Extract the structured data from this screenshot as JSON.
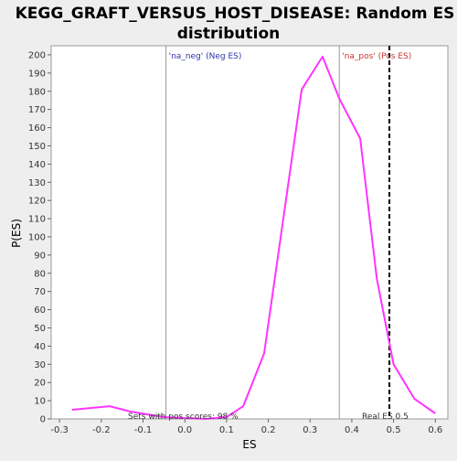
{
  "chart_data": {
    "type": "line",
    "title_line1": "KEGG_GRAFT_VERSUS_HOST_DISEASE: Random ES",
    "title_line2": "distribution",
    "xlabel": "ES",
    "ylabel": "P(ES)",
    "xlim": [
      -0.32,
      0.63
    ],
    "ylim": [
      0,
      205
    ],
    "xticks": [
      -0.3,
      -0.2,
      -0.1,
      0.0,
      0.1,
      0.2,
      0.3,
      0.4,
      0.5,
      0.6
    ],
    "xtick_labels": [
      "-0.3",
      "-0.2",
      "-0.1",
      "0.0",
      "0.1",
      "0.2",
      "0.3",
      "0.4",
      "0.5",
      "0.6"
    ],
    "yticks": [
      0,
      10,
      20,
      30,
      40,
      50,
      60,
      70,
      80,
      90,
      100,
      110,
      120,
      130,
      140,
      150,
      160,
      170,
      180,
      190,
      200
    ],
    "grid": false,
    "series": [
      {
        "color": "#ff33ff",
        "x": [
          -0.27,
          -0.18,
          -0.13,
          -0.05,
          0.05,
          0.1,
          0.14,
          0.19,
          0.28,
          0.33,
          0.37,
          0.42,
          0.46,
          0.5,
          0.55,
          0.6
        ],
        "y": [
          5,
          7,
          4,
          1,
          0,
          1,
          7,
          36,
          181,
          199,
          176,
          154,
          77,
          30,
          11,
          3
        ]
      }
    ],
    "vlines": [
      {
        "x": -0.045,
        "style": "solid",
        "color": "#999999",
        "label": "'na_neg' (Neg ES)",
        "label_color": "#3333aa"
      },
      {
        "x": 0.37,
        "style": "solid",
        "color": "#999999",
        "label": "'na_pos' (Pos ES)",
        "label_color": "#cc3333"
      },
      {
        "x": 0.49,
        "style": "dashed",
        "color": "#000000"
      }
    ],
    "annotations": {
      "pos_scores": "Sets with pos scores: 98 %",
      "real_es": "Real ES 0.5"
    }
  }
}
